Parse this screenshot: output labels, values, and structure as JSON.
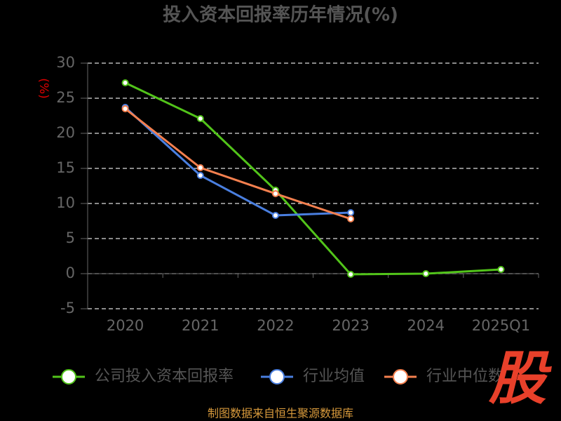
{
  "chart_data": {
    "type": "line",
    "title": "投入资本回报率历年情况(%)",
    "y_label": "(%)",
    "categories": [
      "2020",
      "2021",
      "2022",
      "2023",
      "2024",
      "2025Q1"
    ],
    "series": [
      {
        "name": "公司投入资本回报率",
        "color": "#52c41a",
        "values": [
          27.2,
          22.1,
          11.9,
          -0.1,
          0.0,
          0.6
        ]
      },
      {
        "name": "行业均值",
        "color": "#4a7fe0",
        "values": [
          23.7,
          14.0,
          8.3,
          8.7,
          null,
          null
        ]
      },
      {
        "name": "行业中位数",
        "color": "#f5804f",
        "values": [
          23.5,
          15.1,
          11.4,
          7.8,
          null,
          null
        ]
      }
    ],
    "ylim": [
      -5,
      30
    ],
    "yticks": [
      -5,
      0,
      5,
      10,
      15,
      20,
      25,
      30
    ],
    "grid": true,
    "source": "制图数据来自恒生聚源数据库",
    "watermark": "股"
  }
}
